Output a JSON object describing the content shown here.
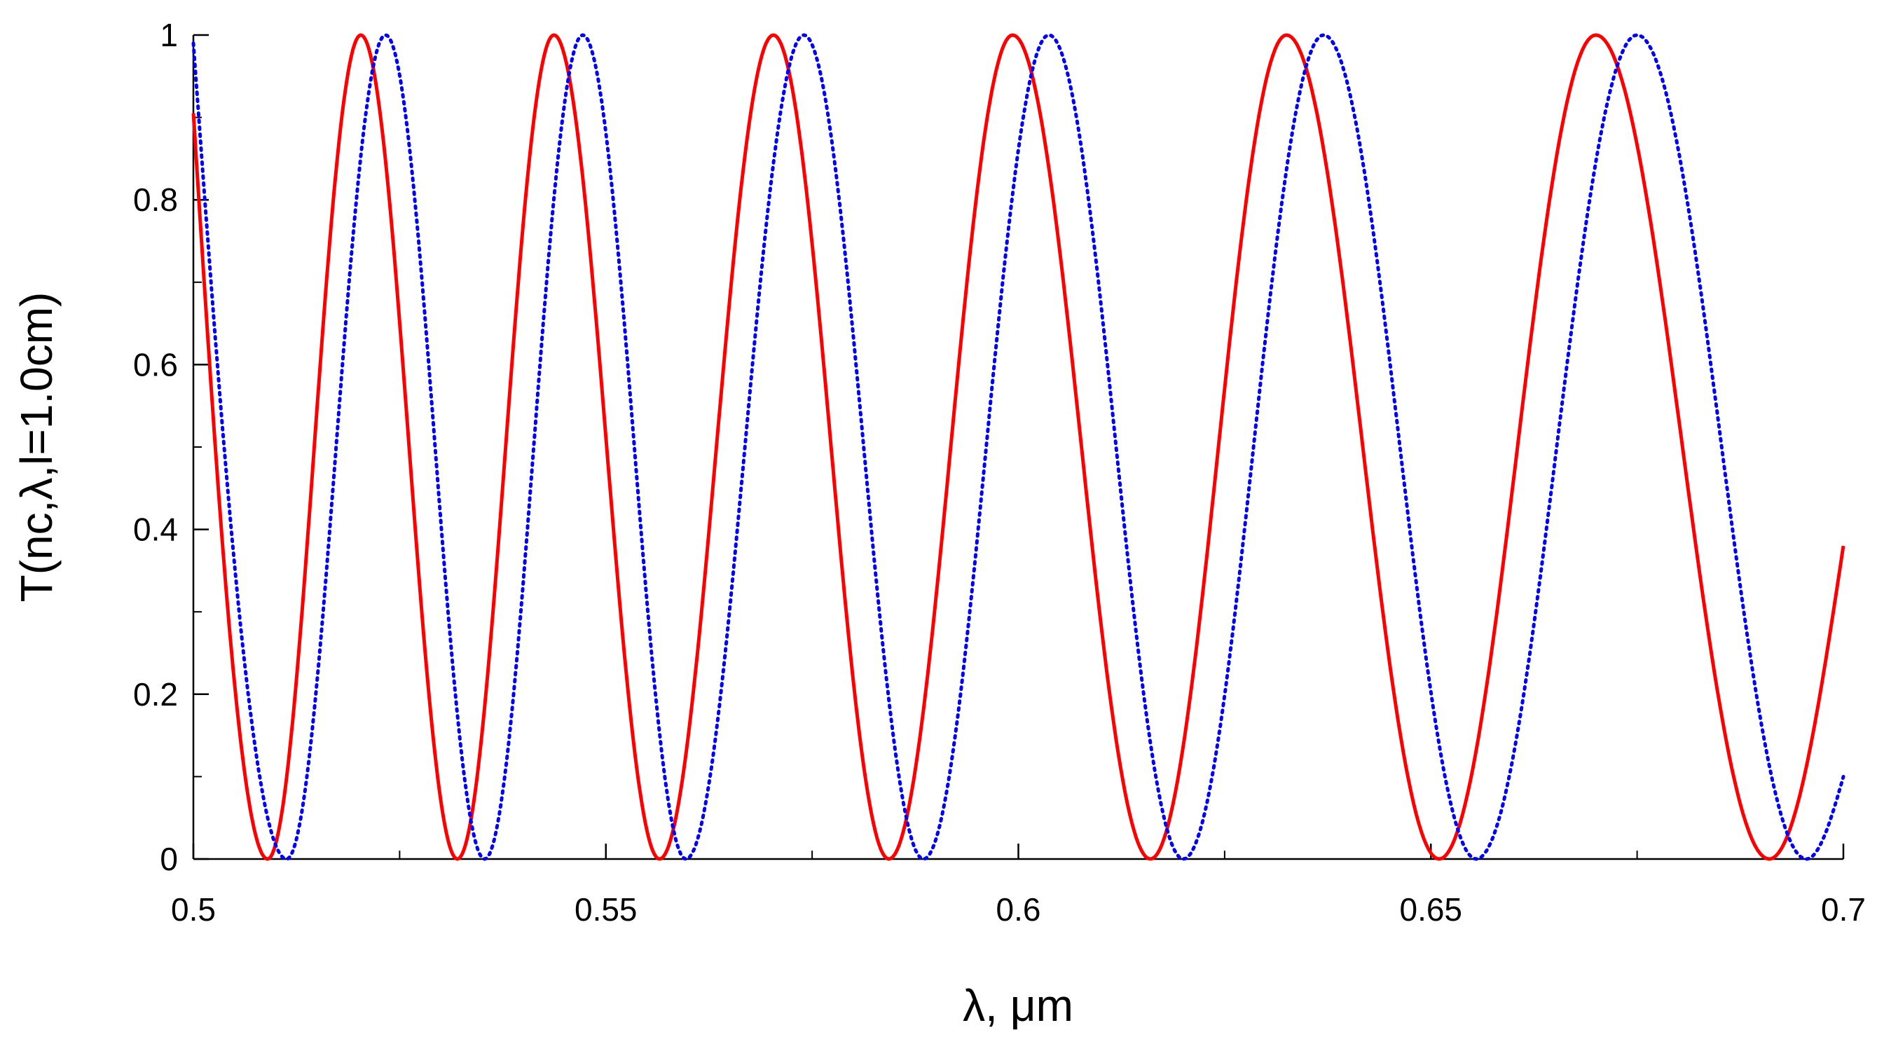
{
  "chart_data": {
    "type": "line",
    "title": "",
    "xlabel": "λ, μm",
    "ylabel": "T(nc,λ,l=1.0cm)",
    "xlim": [
      0.5,
      0.7
    ],
    "ylim": [
      0,
      1
    ],
    "x_ticks": [
      {
        "value": 0.5,
        "label": "0.5"
      },
      {
        "value": 0.55,
        "label": "0.55"
      },
      {
        "value": 0.6,
        "label": "0.6"
      },
      {
        "value": 0.65,
        "label": "0.65"
      },
      {
        "value": 0.7,
        "label": "0.7"
      }
    ],
    "x_minor_ticks": [
      0.525,
      0.575,
      0.625,
      0.675
    ],
    "y_ticks": [
      {
        "value": 0,
        "label": "0"
      },
      {
        "value": 0.2,
        "label": "0.2"
      },
      {
        "value": 0.4,
        "label": "0.4"
      },
      {
        "value": 0.6,
        "label": "0.6"
      },
      {
        "value": 0.8,
        "label": "0.8"
      },
      {
        "value": 1,
        "label": "1"
      }
    ],
    "y_minor_ticks": [
      0.1,
      0.3,
      0.5,
      0.7,
      0.9
    ],
    "grid": false,
    "legend": "none",
    "series": [
      {
        "color": "#ff0000",
        "style": "solid",
        "points": [
          [
            0.5,
            0.905
          ],
          [
            0.509,
            0
          ],
          [
            0.5203,
            1
          ],
          [
            0.532,
            0
          ],
          [
            0.5437,
            1
          ],
          [
            0.5565,
            0
          ],
          [
            0.5703,
            1
          ],
          [
            0.5843,
            0
          ],
          [
            0.5993,
            1
          ],
          [
            0.616,
            0
          ],
          [
            0.6325,
            1
          ],
          [
            0.651,
            0
          ],
          [
            0.67,
            1
          ],
          [
            0.691,
            0
          ],
          [
            0.7,
            0.38
          ]
        ]
      },
      {
        "color": "#0000ff",
        "style": "dotted",
        "points": [
          [
            0.5,
            0.99
          ],
          [
            0.5113,
            0
          ],
          [
            0.5233,
            1
          ],
          [
            0.5353,
            0
          ],
          [
            0.5472,
            1
          ],
          [
            0.5597,
            0
          ],
          [
            0.574,
            1
          ],
          [
            0.5885,
            0
          ],
          [
            0.6037,
            1
          ],
          [
            0.62,
            0
          ],
          [
            0.637,
            1
          ],
          [
            0.6555,
            0
          ],
          [
            0.675,
            1
          ],
          [
            0.6955,
            0
          ],
          [
            0.7,
            0.1
          ]
        ]
      }
    ]
  }
}
